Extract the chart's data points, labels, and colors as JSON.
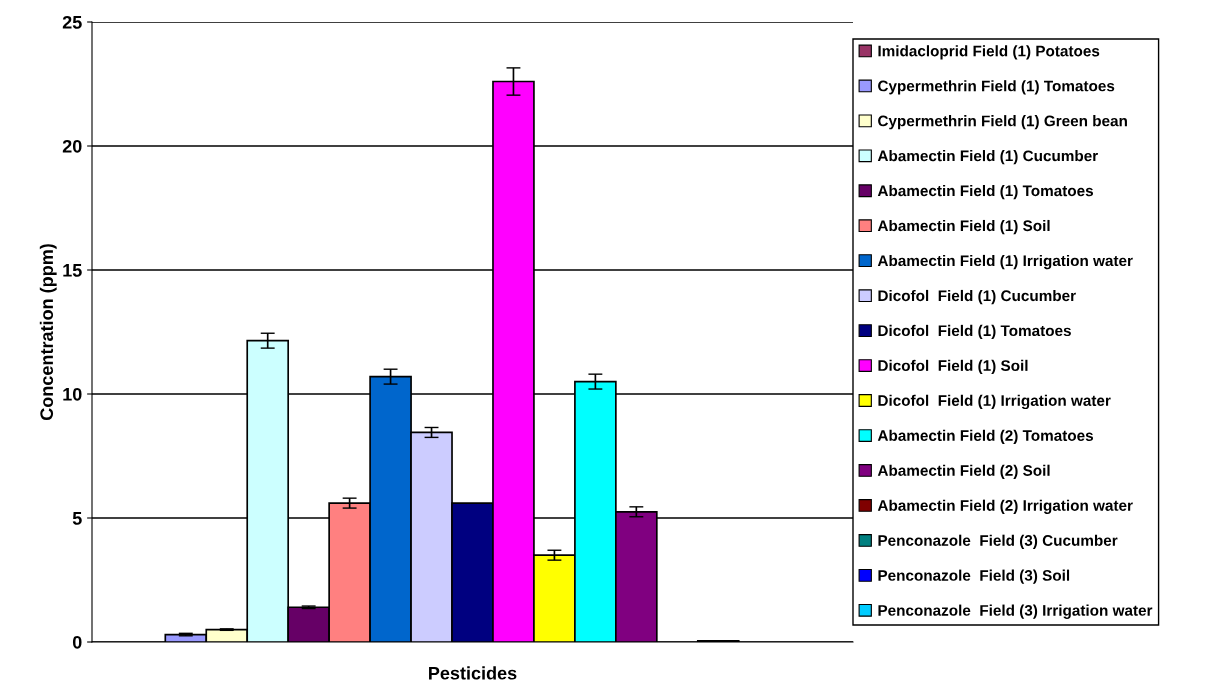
{
  "chart_data": {
    "type": "bar",
    "xlabel": "Pesticides",
    "ylabel": "Concentration (ppm)",
    "categories": [
      null
    ],
    "series": [
      {
        "name": "Imidacloprid Field (1) Potatoes",
        "color": "#993366",
        "values": [
          0
        ],
        "errors": [
          null
        ]
      },
      {
        "name": "Cypermethrin Field (1) Tomatoes",
        "color": "#9999ff",
        "values": [
          0.3
        ],
        "errors": [
          0.05
        ]
      },
      {
        "name": "Cypermethrin Field (1) Green bean",
        "color": "#ffffcc",
        "values": [
          0.5
        ],
        "errors": [
          0.03
        ]
      },
      {
        "name": "Abamectin Field (1) Cucumber",
        "color": "#ccffff",
        "values": [
          12.15
        ],
        "errors": [
          0.3
        ]
      },
      {
        "name": "Abamectin Field (1) Tomatoes",
        "color": "#660066",
        "values": [
          1.4
        ],
        "errors": [
          0.05
        ]
      },
      {
        "name": "Abamectin Field (1) Soil",
        "color": "#ff8080",
        "values": [
          5.6
        ],
        "errors": [
          0.2
        ]
      },
      {
        "name": "Abamectin Field (1) Irrigation water",
        "color": "#0066cc",
        "values": [
          10.7
        ],
        "errors": [
          0.3
        ]
      },
      {
        "name": "Dicofol  Field (1) Cucumber",
        "color": "#ccccff",
        "values": [
          8.45
        ],
        "errors": [
          0.2
        ]
      },
      {
        "name": "Dicofol  Field (1) Tomatoes",
        "color": "#000080",
        "values": [
          5.6
        ],
        "errors": [
          null
        ]
      },
      {
        "name": "Dicofol  Field (1) Soil",
        "color": "#ff00ff",
        "values": [
          22.6
        ],
        "errors": [
          0.55
        ]
      },
      {
        "name": "Dicofol  Field (1) Irrigation water",
        "color": "#ffff00",
        "values": [
          3.5
        ],
        "errors": [
          0.2
        ]
      },
      {
        "name": "Abamectin Field (2) Tomatoes",
        "color": "#00ffff",
        "values": [
          10.5
        ],
        "errors": [
          0.3
        ]
      },
      {
        "name": "Abamectin Field (2) Soil",
        "color": "#800080",
        "values": [
          5.25
        ],
        "errors": [
          0.2
        ]
      },
      {
        "name": "Abamectin Field (2) Irrigation water",
        "color": "#800000",
        "values": [
          0
        ],
        "errors": [
          null
        ]
      },
      {
        "name": "Penconazole  Field (3) Cucumber",
        "color": "#008080",
        "values": [
          0.05
        ],
        "errors": [
          null
        ]
      },
      {
        "name": "Penconazole  Field (3) Soil",
        "color": "#0000ff",
        "values": [
          0
        ],
        "errors": [
          null
        ]
      },
      {
        "name": "Penconazole  Field (3) Irrigation water",
        "color": "#00ccff",
        "values": [
          0
        ],
        "errors": [
          null
        ]
      }
    ],
    "ylim": [
      0,
      25
    ],
    "yticks": [
      0,
      5,
      10,
      15,
      20,
      25
    ],
    "grid": "y",
    "legend": "right"
  }
}
